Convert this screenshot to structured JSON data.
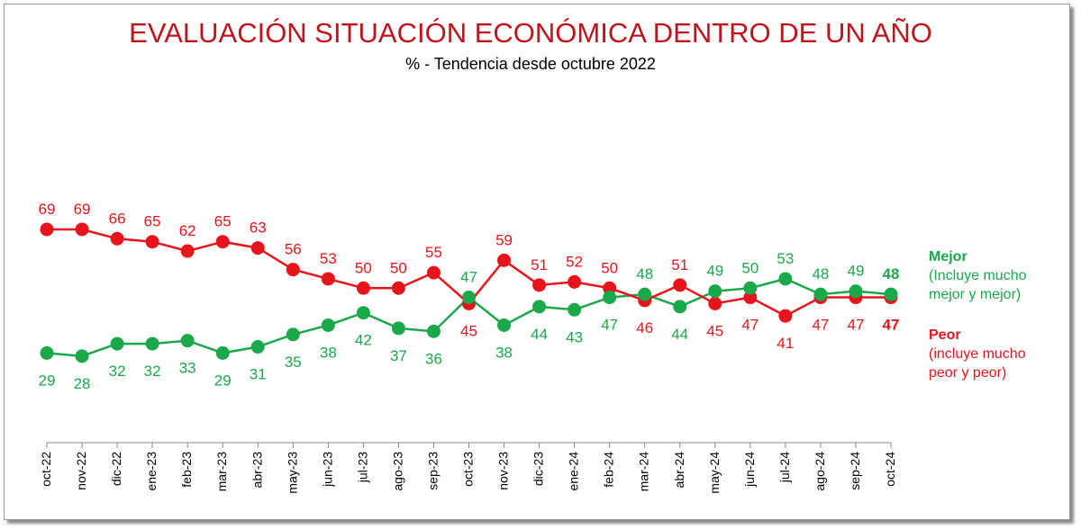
{
  "chart_data": {
    "type": "line",
    "title": "EVALUACIÓN SITUACIÓN ECONÓMICA DENTRO DE UN AÑO",
    "subtitle": "% - Tendencia desde octubre 2022",
    "categories": [
      "oct-22",
      "nov-22",
      "dic-22",
      "ene-23",
      "feb-23",
      "mar-23",
      "abr-23",
      "may-23",
      "jun-23",
      "jul-23",
      "ago-23",
      "sep-23",
      "oct-23",
      "nov-23",
      "dic-23",
      "ene-24",
      "feb-24",
      "mar-24",
      "abr-24",
      "may-24",
      "jun-24",
      "jul-24",
      "ago-24",
      "sep-24",
      "oct-24"
    ],
    "series": [
      {
        "name": "Mejor",
        "note": "(Incluye mucho mejor y mejor)",
        "color": "#1aa84a",
        "values": [
          29,
          28,
          32,
          32,
          33,
          29,
          31,
          35,
          38,
          42,
          37,
          36,
          47,
          38,
          44,
          43,
          47,
          48,
          44,
          49,
          50,
          53,
          48,
          49,
          48
        ]
      },
      {
        "name": "Peor",
        "note": "(incluye mucho peor y peor)",
        "color": "#e8141c",
        "values": [
          69,
          69,
          66,
          65,
          62,
          65,
          63,
          56,
          53,
          50,
          50,
          55,
          45,
          59,
          51,
          52,
          50,
          46,
          51,
          45,
          47,
          41,
          47,
          47,
          47
        ]
      }
    ],
    "ylim": [
      0,
      75
    ],
    "grid": false,
    "legend": "right"
  }
}
